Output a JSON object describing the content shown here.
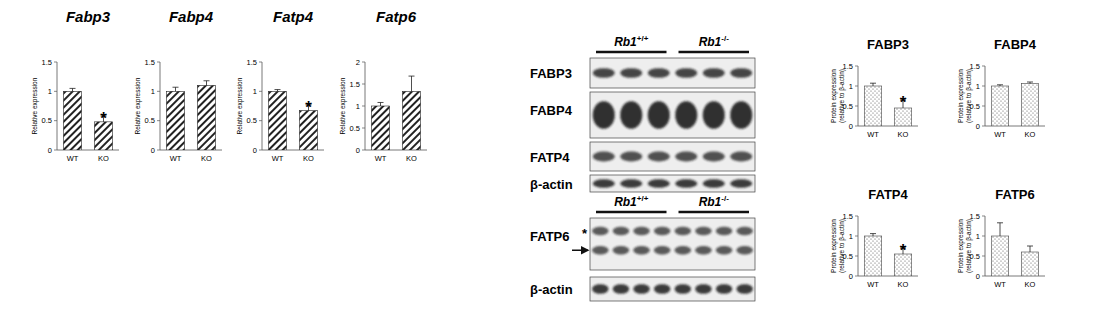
{
  "chart_data": [
    {
      "type": "bar",
      "title": "Fabp3",
      "y_label": "Relative expression",
      "categories": [
        "WT",
        "KO"
      ],
      "values": [
        1.0,
        0.48
      ],
      "errors": [
        0.05,
        0.1
      ],
      "significance": [
        null,
        "*"
      ],
      "color": "#222222",
      "ylim": [
        0,
        1.5
      ],
      "yticks": [
        0,
        0.5,
        1,
        1.5
      ],
      "grid": false
    },
    {
      "type": "bar",
      "title": "Fabp4",
      "y_label": "Relative expression",
      "categories": [
        "WT",
        "KO"
      ],
      "values": [
        1.0,
        1.1
      ],
      "errors": [
        0.07,
        0.08
      ],
      "significance": [
        null,
        null
      ],
      "color": "#222222",
      "ylim": [
        0,
        1.5
      ],
      "yticks": [
        0,
        0.5,
        1,
        1.5
      ],
      "grid": false
    },
    {
      "type": "bar",
      "title": "Fatp4",
      "y_label": "Relative expression",
      "categories": [
        "WT",
        "KO"
      ],
      "values": [
        1.0,
        0.67
      ],
      "errors": [
        0.03,
        0.1
      ],
      "significance": [
        null,
        "*"
      ],
      "color": "#222222",
      "ylim": [
        0,
        1.5
      ],
      "yticks": [
        0,
        0.5,
        1,
        1.5
      ],
      "grid": false
    },
    {
      "type": "bar",
      "title": "Fatp6",
      "y_label": "Relative expression",
      "categories": [
        "WT",
        "KO"
      ],
      "values": [
        1.0,
        1.33
      ],
      "errors": [
        0.08,
        0.35
      ],
      "significance": [
        null,
        null
      ],
      "color": "#222222",
      "ylim": [
        0,
        2
      ],
      "yticks": [
        0,
        0.5,
        1,
        1.5,
        2
      ],
      "grid": false
    },
    {
      "type": "bar",
      "title": "FABP3",
      "y_label": "Protein expression (relative to β-actin)",
      "categories": [
        "WT",
        "KO"
      ],
      "values": [
        1.0,
        0.45
      ],
      "errors": [
        0.07,
        0.2
      ],
      "significance": [
        null,
        "*"
      ],
      "color": "#444444",
      "ylim": [
        0,
        1.5
      ],
      "yticks": [
        0,
        0.5,
        1,
        1.5
      ],
      "grid": false
    },
    {
      "type": "bar",
      "title": "FABP4",
      "y_label": "Protein expression (relative to β-actin)",
      "categories": [
        "WT",
        "KO"
      ],
      "values": [
        1.0,
        1.06
      ],
      "errors": [
        0.03,
        0.04
      ],
      "significance": [
        null,
        null
      ],
      "color": "#444444",
      "ylim": [
        0,
        1.5
      ],
      "yticks": [
        0,
        0.5,
        1,
        1.5
      ],
      "grid": false
    },
    {
      "type": "bar",
      "title": "FATP4",
      "y_label": "Protein expression (relative to β-actin)",
      "categories": [
        "WT",
        "KO"
      ],
      "values": [
        1.0,
        0.55
      ],
      "errors": [
        0.06,
        0.15
      ],
      "significance": [
        null,
        "*"
      ],
      "color": "#444444",
      "ylim": [
        0,
        1.5
      ],
      "yticks": [
        0,
        0.5,
        1,
        1.5
      ],
      "grid": false
    },
    {
      "type": "bar",
      "title": "FATP6",
      "y_label": "Protein expression (relative to β-actin)",
      "categories": [
        "WT",
        "KO"
      ],
      "values": [
        1.0,
        0.6
      ],
      "errors": [
        0.33,
        0.15
      ],
      "significance": [
        null,
        null
      ],
      "color": "#444444",
      "ylim": [
        0,
        1.5
      ],
      "yticks": [
        0,
        0.5,
        1,
        1.5
      ],
      "grid": false
    }
  ],
  "blots": [
    {
      "columns": [
        {
          "gene": "Rb1",
          "genotype": "+/+"
        },
        {
          "gene": "Rb1",
          "genotype": "-/-"
        }
      ],
      "rows": [
        "FABP3",
        "FABP4",
        "FATP4",
        "β-actin"
      ]
    },
    {
      "columns": [
        {
          "gene": "Rb1",
          "genotype": "+/+"
        },
        {
          "gene": "Rb1",
          "genotype": "-/-"
        }
      ],
      "rows": [
        "FATP6",
        "β-actin"
      ],
      "marker": "*"
    }
  ]
}
